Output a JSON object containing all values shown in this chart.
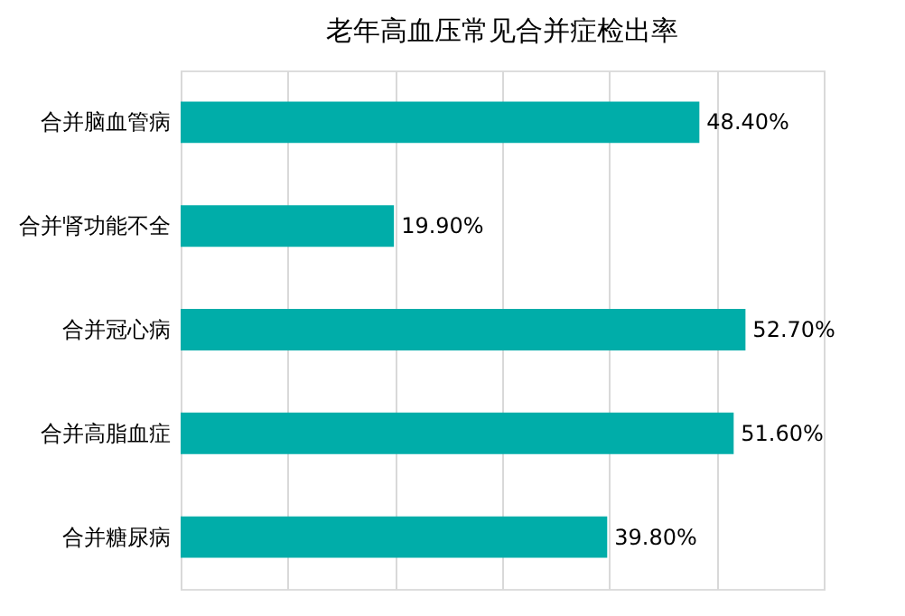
{
  "chart_data": {
    "type": "bar",
    "orientation": "horizontal",
    "title": "老年高血压常见合并症检出率",
    "categories": [
      "合并脑血管病",
      "合并肾功能不全",
      "合并冠心病",
      "合并高脂血症",
      "合并糖尿病"
    ],
    "values": [
      48.4,
      19.9,
      52.7,
      51.6,
      39.8
    ],
    "value_labels": [
      "48.40%",
      "19.90%",
      "52.70%",
      "51.60%",
      "39.80%"
    ],
    "color": "#00ada9",
    "xlim": [
      0,
      60
    ],
    "xticks": [
      {
        "value": 0,
        "label": null
      },
      {
        "value": 10,
        "label": null
      },
      {
        "value": 20,
        "label": null
      },
      {
        "value": 30,
        "label": null
      },
      {
        "value": 40,
        "label": null
      },
      {
        "value": 50,
        "label": null
      },
      {
        "value": 60,
        "label": null
      }
    ],
    "grid": "x",
    "tick_labels": "y"
  }
}
